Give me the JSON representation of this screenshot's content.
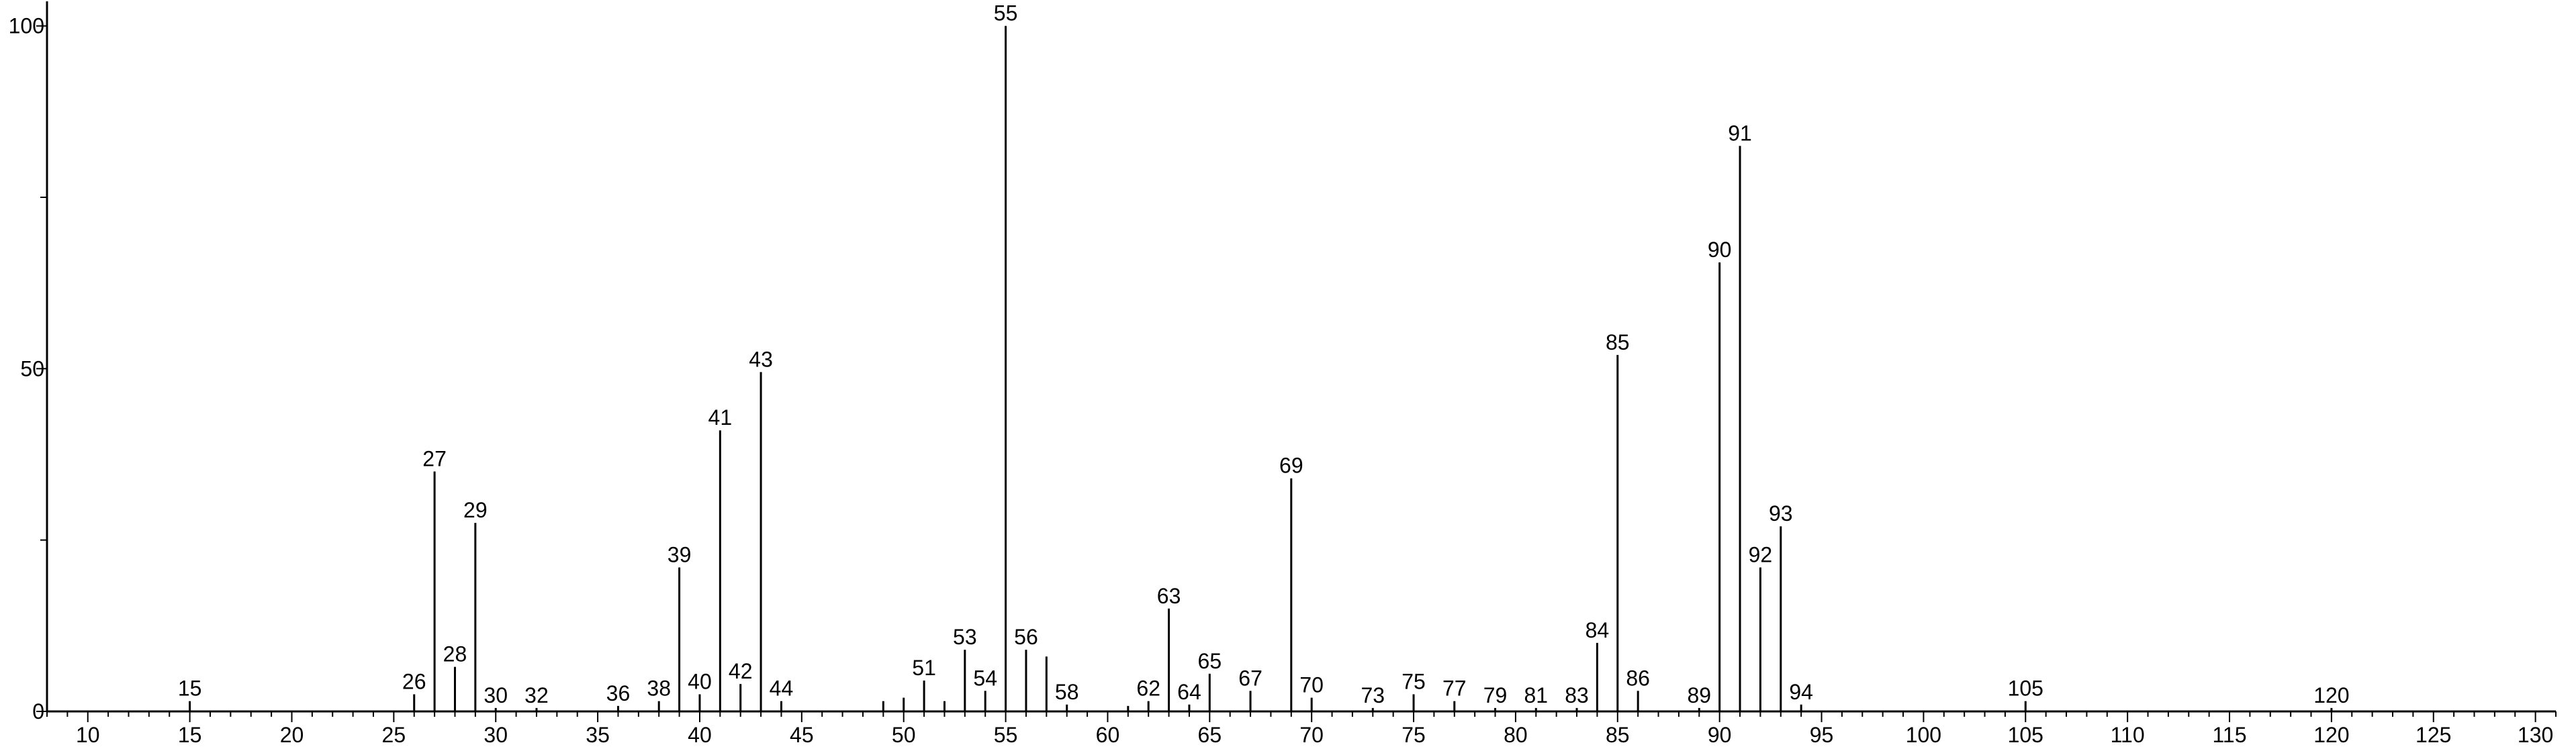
{
  "chart_data": {
    "type": "bar",
    "title": "",
    "xlabel": "",
    "ylabel": "",
    "xlim": [
      8,
      131
    ],
    "ylim": [
      0,
      103
    ],
    "grid": false,
    "x_ticks": [
      10,
      15,
      20,
      25,
      30,
      35,
      40,
      45,
      50,
      55,
      60,
      65,
      70,
      75,
      80,
      85,
      90,
      95,
      100,
      105,
      110,
      115,
      120,
      125,
      130
    ],
    "x_tick_labels": [
      "10",
      "15",
      "20",
      "25",
      "30",
      "35",
      "40",
      "45",
      "50",
      "55",
      "60",
      "65",
      "70",
      "75",
      "80",
      "85",
      "90",
      "95",
      "100",
      "105",
      "110",
      "115",
      "120",
      "125",
      "130"
    ],
    "y_ticks": [
      0,
      50,
      100
    ],
    "y_tick_labels": [
      "0",
      "50",
      "100"
    ],
    "peaks": [
      {
        "x": 15,
        "y": 1.5,
        "label": "15"
      },
      {
        "x": 26,
        "y": 2.5,
        "label": "26"
      },
      {
        "x": 27,
        "y": 35,
        "label": "27"
      },
      {
        "x": 28,
        "y": 6.5,
        "label": "28"
      },
      {
        "x": 29,
        "y": 27.5,
        "label": "29"
      },
      {
        "x": 30,
        "y": 0.5,
        "label": "30"
      },
      {
        "x": 32,
        "y": 0.5,
        "label": "32"
      },
      {
        "x": 36,
        "y": 0.8,
        "label": "36"
      },
      {
        "x": 38,
        "y": 1.5,
        "label": "38"
      },
      {
        "x": 39,
        "y": 21,
        "label": "39"
      },
      {
        "x": 40,
        "y": 2.5,
        "label": "40"
      },
      {
        "x": 41,
        "y": 41,
        "label": "41"
      },
      {
        "x": 42,
        "y": 4,
        "label": "42"
      },
      {
        "x": 43,
        "y": 49.5,
        "label": "43"
      },
      {
        "x": 44,
        "y": 1.5,
        "label": "44"
      },
      {
        "x": 49,
        "y": 1.5,
        "label": ""
      },
      {
        "x": 50,
        "y": 2,
        "label": ""
      },
      {
        "x": 51,
        "y": 4.5,
        "label": "51"
      },
      {
        "x": 52,
        "y": 1.5,
        "label": ""
      },
      {
        "x": 53,
        "y": 9,
        "label": "53"
      },
      {
        "x": 54,
        "y": 3,
        "label": "54"
      },
      {
        "x": 55,
        "y": 100,
        "label": "55"
      },
      {
        "x": 56,
        "y": 9,
        "label": "56"
      },
      {
        "x": 57,
        "y": 8,
        "label": ""
      },
      {
        "x": 58,
        "y": 1,
        "label": "58"
      },
      {
        "x": 61,
        "y": 0.8,
        "label": ""
      },
      {
        "x": 62,
        "y": 1.5,
        "label": "62"
      },
      {
        "x": 63,
        "y": 15,
        "label": "63"
      },
      {
        "x": 64,
        "y": 1,
        "label": "64"
      },
      {
        "x": 65,
        "y": 5.5,
        "label": "65"
      },
      {
        "x": 67,
        "y": 3,
        "label": "67"
      },
      {
        "x": 69,
        "y": 34,
        "label": "69"
      },
      {
        "x": 70,
        "y": 2,
        "label": "70"
      },
      {
        "x": 73,
        "y": 0.5,
        "label": "73"
      },
      {
        "x": 75,
        "y": 2.5,
        "label": "75"
      },
      {
        "x": 77,
        "y": 1.5,
        "label": "77"
      },
      {
        "x": 79,
        "y": 0.5,
        "label": "79"
      },
      {
        "x": 81,
        "y": 0.5,
        "label": "81"
      },
      {
        "x": 83,
        "y": 0.5,
        "label": "83"
      },
      {
        "x": 84,
        "y": 10,
        "label": "84"
      },
      {
        "x": 85,
        "y": 52,
        "label": "85"
      },
      {
        "x": 86,
        "y": 3,
        "label": "86"
      },
      {
        "x": 89,
        "y": 0.5,
        "label": "89"
      },
      {
        "x": 90,
        "y": 65.5,
        "label": "90"
      },
      {
        "x": 91,
        "y": 82.5,
        "label": "91"
      },
      {
        "x": 92,
        "y": 21,
        "label": "92"
      },
      {
        "x": 93,
        "y": 27,
        "label": "93"
      },
      {
        "x": 94,
        "y": 1,
        "label": "94"
      },
      {
        "x": 105,
        "y": 1.5,
        "label": "105"
      },
      {
        "x": 120,
        "y": 0.5,
        "label": "120"
      }
    ]
  }
}
